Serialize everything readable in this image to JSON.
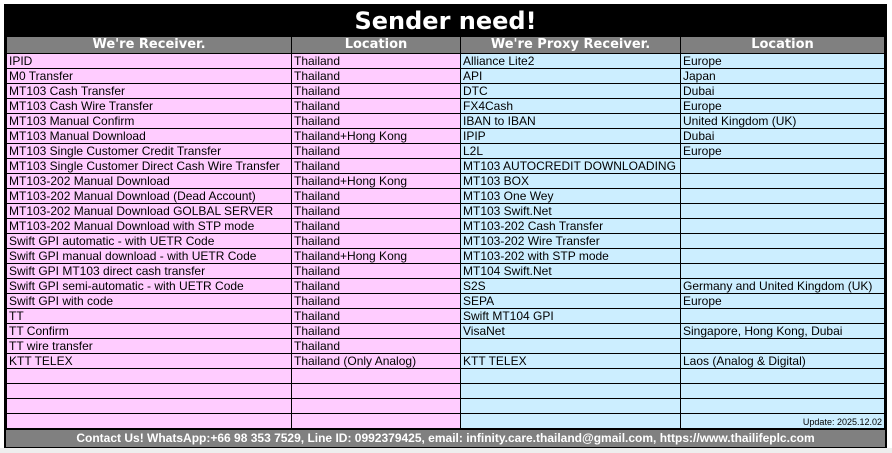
{
  "title": "Sender need!",
  "headers": [
    "We're Receiver.",
    "Location",
    "We're Proxy Receiver.",
    "Location"
  ],
  "receiver": [
    {
      "name": "IPID",
      "location": "Thailand"
    },
    {
      "name": "M0 Transfer",
      "location": "Thailand"
    },
    {
      "name": "MT103 Cash Transfer",
      "location": "Thailand"
    },
    {
      "name": "MT103 Cash Wire Transfer",
      "location": "Thailand"
    },
    {
      "name": "MT103 Manual Confirm",
      "location": "Thailand"
    },
    {
      "name": "MT103 Manual Download",
      "location": "Thailand+Hong Kong"
    },
    {
      "name": "MT103 Single Customer Credit Transfer",
      "location": "Thailand"
    },
    {
      "name": "MT103 Single Customer Direct Cash Wire Transfer",
      "location": "Thailand"
    },
    {
      "name": "MT103-202 Manual Download",
      "location": "Thailand+Hong Kong"
    },
    {
      "name": "MT103-202 Manual Download (Dead Account)",
      "location": "Thailand"
    },
    {
      "name": "MT103-202 Manual Download GOLBAL SERVER",
      "location": "Thailand"
    },
    {
      "name": "MT103-202 Manual Download with STP mode",
      "location": "Thailand"
    },
    {
      "name": "Swift GPI automatic - with UETR Code",
      "location": "Thailand"
    },
    {
      "name": "Swift GPI manual download - with UETR Code",
      "location": "Thailand+Hong Kong"
    },
    {
      "name": "Swift GPI MT103 direct cash transfer",
      "location": "Thailand"
    },
    {
      "name": "Swift GPI semi-automatic - with UETR Code",
      "location": "Thailand"
    },
    {
      "name": "Swift GPI with code",
      "location": "Thailand"
    },
    {
      "name": "TT",
      "location": "Thailand"
    },
    {
      "name": "TT Confirm",
      "location": "Thailand"
    },
    {
      "name": "TT wire transfer",
      "location": "Thailand"
    },
    {
      "name": "KTT TELEX",
      "location": "Thailand (Only Analog)"
    }
  ],
  "proxy": [
    {
      "name": "Alliance Lite2",
      "location": "Europe"
    },
    {
      "name": "API",
      "location": "Japan"
    },
    {
      "name": "DTC",
      "location": "Dubai"
    },
    {
      "name": "FX4Cash",
      "location": "Europe"
    },
    {
      "name": "IBAN to IBAN",
      "location": "United Kingdom (UK)"
    },
    {
      "name": "IPIP",
      "location": "Dubai"
    },
    {
      "name": "L2L",
      "location": "Europe"
    },
    {
      "name": "MT103 AUTOCREDIT DOWNLOADING",
      "location": ""
    },
    {
      "name": "MT103 BOX",
      "location": ""
    },
    {
      "name": "MT103 One Wey",
      "location": ""
    },
    {
      "name": "MT103 Swift.Net",
      "location": ""
    },
    {
      "name": "MT103-202 Cash Transfer",
      "location": ""
    },
    {
      "name": "MT103-202 Wire Transfer",
      "location": ""
    },
    {
      "name": "MT103-202 with STP mode",
      "location": ""
    },
    {
      "name": "MT104 Swift.Net",
      "location": ""
    },
    {
      "name": "S2S",
      "location": "Germany and United Kingdom (UK)"
    },
    {
      "name": "SEPA",
      "location": "Europe"
    },
    {
      "name": "Swift MT104 GPI",
      "location": ""
    },
    {
      "name": "VisaNet",
      "location": "Singapore, Hong Kong, Dubai"
    },
    {
      "name": "",
      "location": ""
    },
    {
      "name": "KTT TELEX",
      "location": "Laos (Analog & Digital)"
    }
  ],
  "blank_rows": 4,
  "update": "Update: 2025.12.02",
  "footer": "Contact Us! WhatsApp:+66 98 353 7529, Line ID: 0992379425, email: infinity.care.thailand@gmail.com,  https://www.thailifeplc.com",
  "colors": {
    "receiver_bg": "#ffccff",
    "proxy_bg": "#cceeff",
    "header_bg": "#808080",
    "title_bg": "#000000"
  }
}
